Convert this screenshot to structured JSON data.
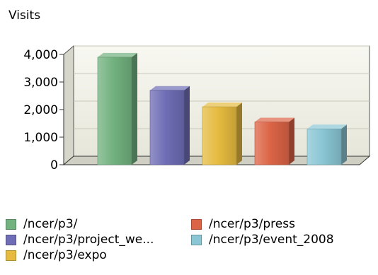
{
  "chart_data": {
    "type": "bar",
    "ylabel": "Visits",
    "ylim": [
      0,
      4000
    ],
    "yticks": [
      "4,000",
      "3,000",
      "2,000",
      "1,000",
      "0"
    ],
    "grid": true,
    "legend_position": "bottom",
    "categories": [
      "/ncer/p3/",
      "/ncer/p3/project_we...",
      "/ncer/p3/expo",
      "/ncer/p3/press",
      "/ncer/p3/event_2008"
    ],
    "values": [
      3900,
      2700,
      2100,
      1550,
      1300
    ],
    "colors": [
      "#72b27f",
      "#6f6db5",
      "#e6bb40",
      "#dc6446",
      "#8ac6d4"
    ]
  }
}
